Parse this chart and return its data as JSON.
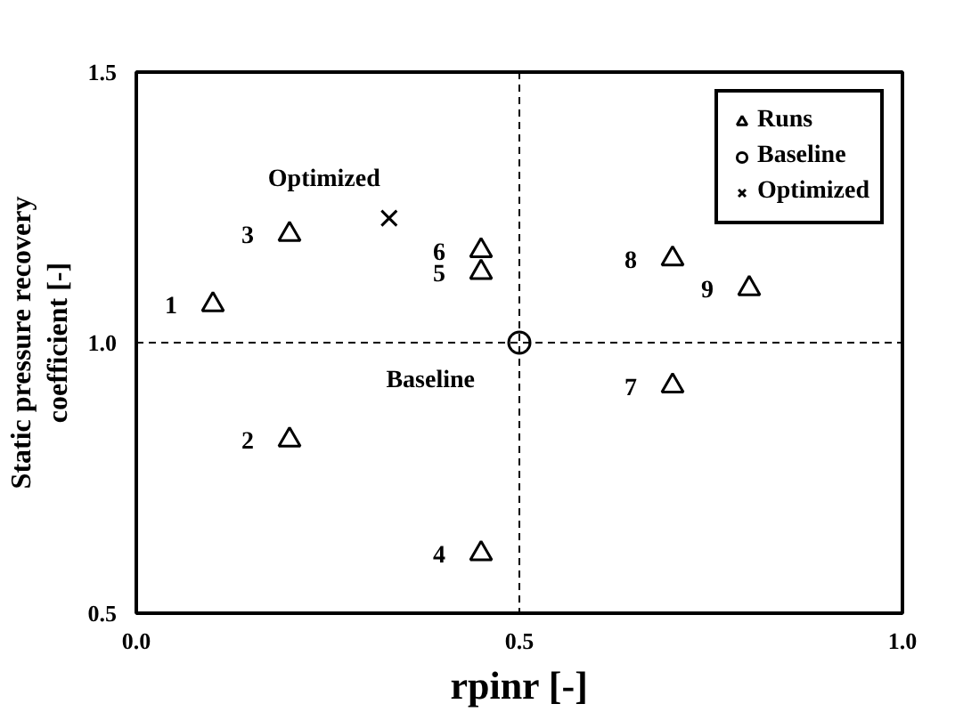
{
  "chart_data": {
    "type": "scatter",
    "xlabel": "rpinr [-]",
    "ylabel": "Static pressure recovery\ncoefficient [-]",
    "xlim": [
      0,
      1
    ],
    "ylim": [
      0.5,
      1.5
    ],
    "xticks": [
      {
        "value": 0,
        "label": "0.0"
      },
      {
        "value": 0.5,
        "label": "0.5"
      },
      {
        "value": 1,
        "label": "1.0"
      }
    ],
    "yticks": [
      {
        "value": 0.5,
        "label": "0.5"
      },
      {
        "value": 1,
        "label": "1.0"
      },
      {
        "value": 1.5,
        "label": "1.5"
      }
    ],
    "grid": false,
    "legend": "top right",
    "series": [
      {
        "name": "Runs",
        "color": "#000000",
        "marker": "triangle",
        "x": [
          0.1,
          0.2,
          0.2,
          0.45,
          0.45,
          0.45,
          0.7,
          0.7,
          0.8
        ],
        "values": [
          1.07,
          0.82,
          1.2,
          0.61,
          1.13,
          1.17,
          0.92,
          1.155,
          1.1
        ]
      },
      {
        "name": "Baseline",
        "color": "#000000",
        "marker": "circle",
        "x": [
          0.5
        ],
        "values": [
          1.0
        ]
      },
      {
        "name": "Optimized",
        "color": "#000000",
        "marker": "cross",
        "x": [
          0.33
        ],
        "values": [
          1.23
        ]
      }
    ],
    "ref_lines": [
      {
        "axis": "x",
        "value": 0.5,
        "line_style": "dashed",
        "color": "#000000"
      },
      {
        "axis": "y",
        "value": 1.0,
        "line_style": "dashed",
        "color": "#000000"
      }
    ],
    "annotations": [
      {
        "text": "1",
        "x": 0.1,
        "y": 1.07
      },
      {
        "text": "2",
        "x": 0.2,
        "y": 0.82
      },
      {
        "text": "3",
        "x": 0.2,
        "y": 1.2
      },
      {
        "text": "4",
        "x": 0.45,
        "y": 0.61
      },
      {
        "text": "5",
        "x": 0.45,
        "y": 1.13
      },
      {
        "text": "6",
        "x": 0.45,
        "y": 1.17
      },
      {
        "text": "7",
        "x": 0.7,
        "y": 0.92
      },
      {
        "text": "8",
        "x": 0.7,
        "y": 1.155
      },
      {
        "text": "9",
        "x": 0.8,
        "y": 1.1
      },
      {
        "text": "Optimized",
        "x": 0.33,
        "y": 1.23
      },
      {
        "text": "Baseline",
        "x": 0.5,
        "y": 1.0
      }
    ]
  }
}
